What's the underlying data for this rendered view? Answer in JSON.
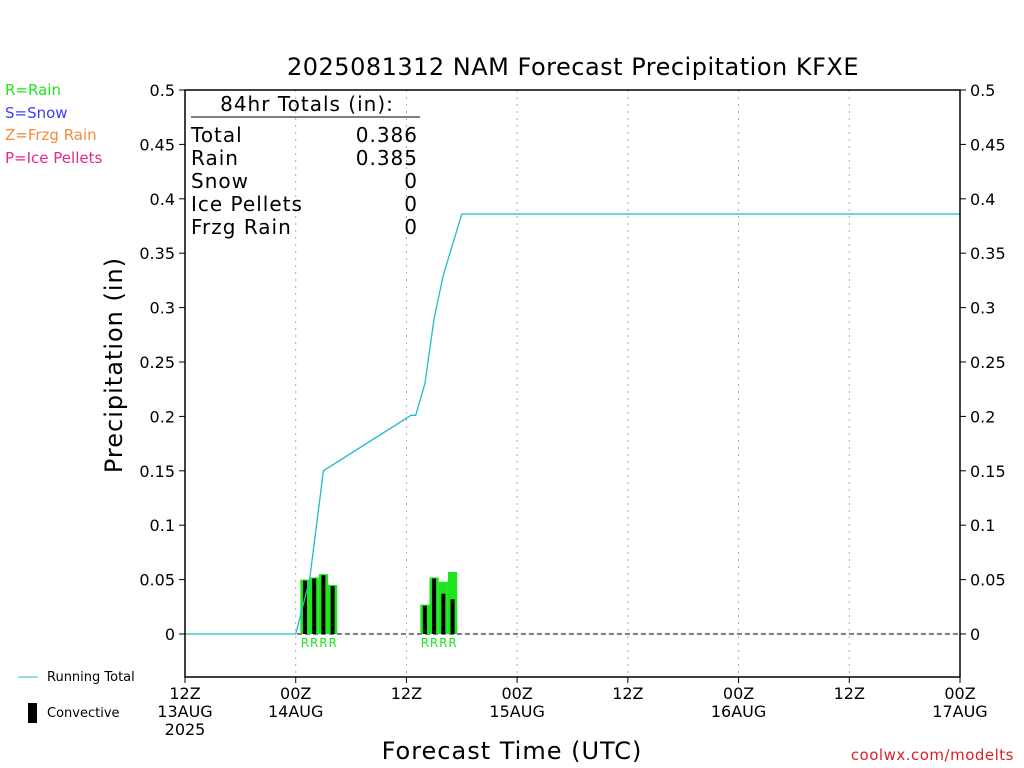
{
  "colors": {
    "rain": "#1ee61e",
    "snow": "#3c3cff",
    "frzg_rain": "#f08c3c",
    "ice_pellets": "#e6288c",
    "running_total": "#1ebec8",
    "convective": "#000000",
    "credit": "#dc1e28"
  },
  "precip_key": [
    {
      "label": "R=Rain",
      "color_key": "rain"
    },
    {
      "label": "S=Snow",
      "color_key": "snow"
    },
    {
      "label": "Z=Frzg Rain",
      "color_key": "frzg_rain"
    },
    {
      "label": "P=Ice Pellets",
      "color_key": "ice_pellets"
    }
  ],
  "footer_legend": {
    "running_total": "Running Total",
    "convective": "Convective"
  },
  "credit": "coolwx.com/modelts",
  "chart_data": {
    "type": "bar",
    "title": "2025081312 NAM Forecast Precipitation KFXE",
    "xlabel": "Forecast Time (UTC)",
    "ylabel": "Precipitation (in)",
    "ylim": [
      -0.04,
      0.5
    ],
    "xlim_hours": [
      0,
      84
    ],
    "y_ticks": [
      "0",
      "0.05",
      "0.1",
      "0.15",
      "0.2",
      "0.25",
      "0.3",
      "0.35",
      "0.4",
      "0.45",
      "0.5"
    ],
    "y_tick_values": [
      0,
      0.05,
      0.1,
      0.15,
      0.2,
      0.25,
      0.3,
      0.35,
      0.4,
      0.45,
      0.5
    ],
    "x_ticks": [
      {
        "hour": 0,
        "lines": [
          "12Z",
          "13AUG",
          "2025"
        ]
      },
      {
        "hour": 12,
        "lines": [
          "00Z",
          "14AUG"
        ]
      },
      {
        "hour": 24,
        "lines": [
          "12Z"
        ]
      },
      {
        "hour": 36,
        "lines": [
          "00Z",
          "15AUG"
        ]
      },
      {
        "hour": 48,
        "lines": [
          "12Z"
        ]
      },
      {
        "hour": 60,
        "lines": [
          "00Z",
          "16AUG"
        ]
      },
      {
        "hour": 72,
        "lines": [
          "12Z"
        ]
      },
      {
        "hour": 84,
        "lines": [
          "00Z",
          "17AUG"
        ]
      }
    ],
    "grid": "vertical dotted at each x tick",
    "totals_box": {
      "heading": "84hr Totals (in):",
      "rows": [
        {
          "label": "Total",
          "value": "0.386"
        },
        {
          "label": "Rain",
          "value": "0.385"
        },
        {
          "label": "Snow",
          "value": "0"
        },
        {
          "label": "Ice Pellets",
          "value": "0"
        },
        {
          "label": "Frzg Rain",
          "value": "0"
        }
      ]
    },
    "series": [
      {
        "name": "Running Total",
        "kind": "line",
        "x_hours": [
          0,
          12,
          13.5,
          15,
          24.5,
          25,
          26,
          27,
          28,
          30,
          84
        ],
        "values": [
          0,
          0,
          0.05,
          0.15,
          0.201,
          0.201,
          0.23,
          0.29,
          0.33,
          0.386,
          0.386
        ]
      },
      {
        "name": "Rain",
        "kind": "bar",
        "x_start_hours": [
          12.5,
          13.5,
          14.5,
          15.5,
          25.5,
          26.5,
          27.5,
          28.5
        ],
        "x_end_hours": [
          13.5,
          14.5,
          15.5,
          16.5,
          26.5,
          27.5,
          28.5,
          29.5
        ],
        "values": [
          0.05,
          0.052,
          0.055,
          0.045,
          0.027,
          0.052,
          0.048,
          0.057
        ],
        "type_labels": [
          "R",
          "R",
          "R",
          "R",
          "R",
          "R",
          "R",
          "R"
        ]
      },
      {
        "name": "Convective",
        "kind": "bar",
        "x_hours": [
          13,
          14,
          15,
          16,
          26,
          27,
          28,
          29
        ],
        "values": [
          0.049,
          0.051,
          0.054,
          0.044,
          0.026,
          0.051,
          0.037,
          0.032
        ]
      }
    ]
  }
}
